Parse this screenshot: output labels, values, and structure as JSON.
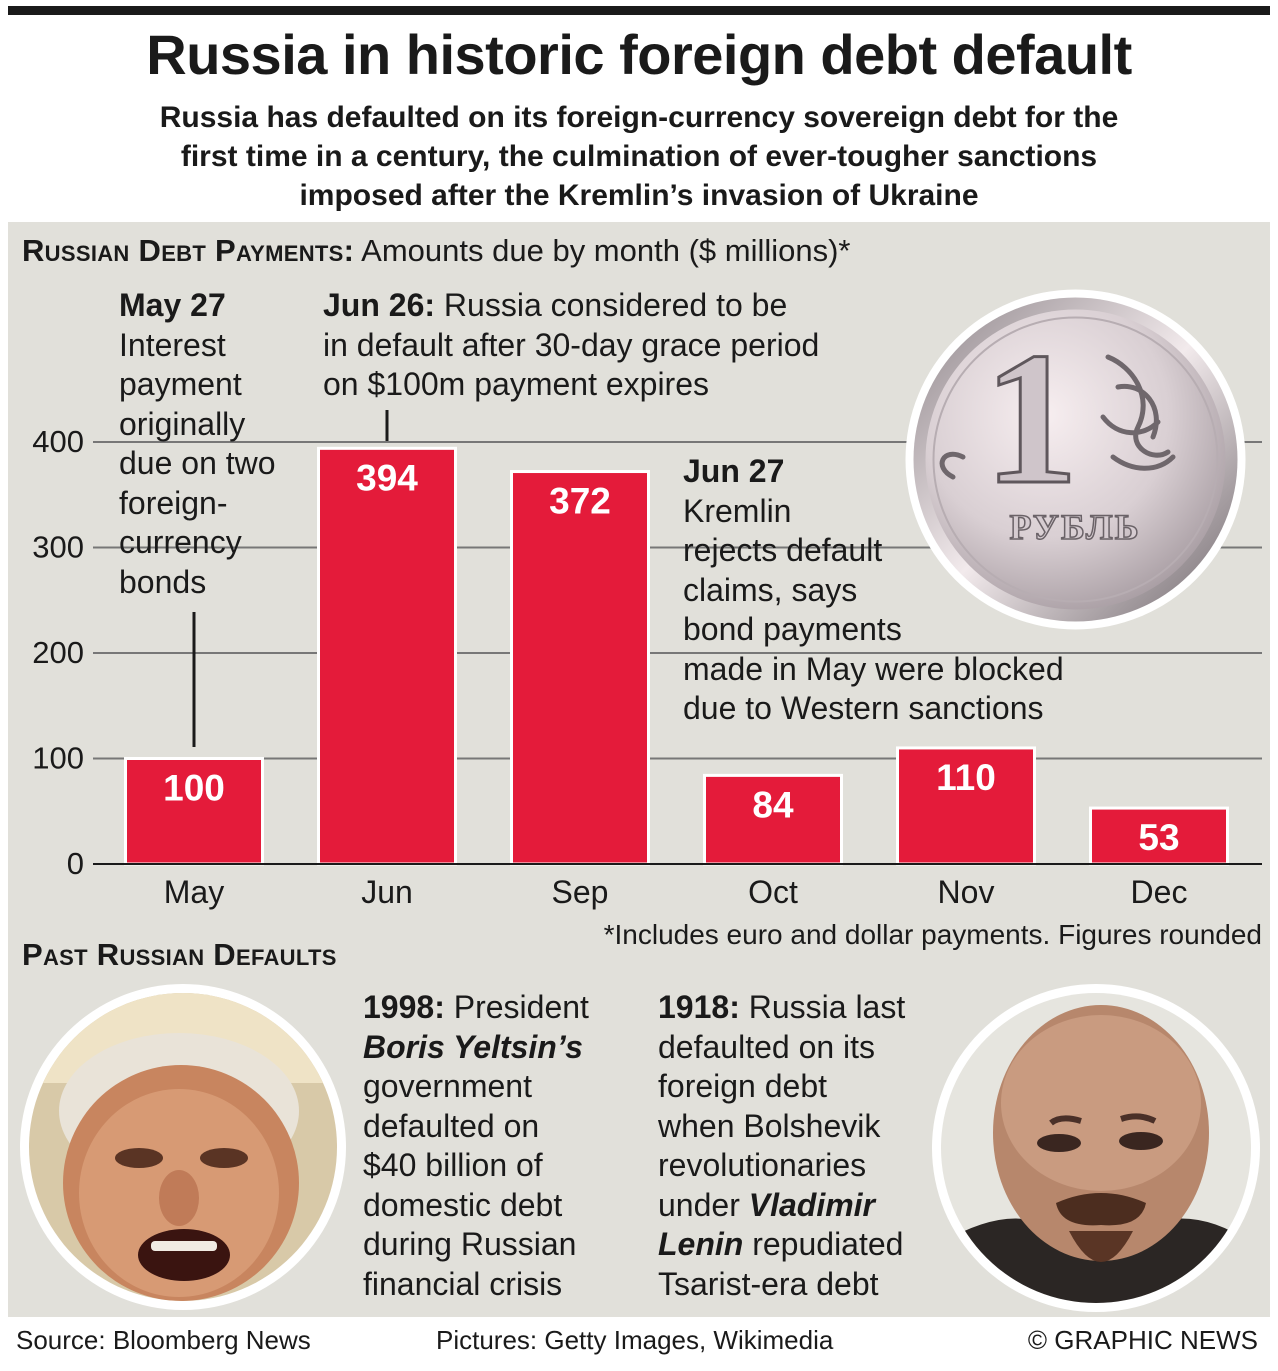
{
  "header": {
    "title": "Russia in historic foreign debt default",
    "subtitle_lines": [
      "Russia has defaulted on its foreign-currency sovereign debt for the",
      "first time in a century, the culmination of ever-tougher sanctions",
      "imposed after the Kremlin’s invasion of Ukraine"
    ]
  },
  "debt_section": {
    "heading": "Russian Debt Payments:",
    "subheading": "Amounts due by month ($ millions)*",
    "footnote": "*Includes euro and dollar payments. Figures rounded"
  },
  "chart_data": {
    "type": "bar",
    "title": "Russian Debt Payments: Amounts due by month ($ millions)*",
    "categories": [
      "May",
      "Jun",
      "Sep",
      "Oct",
      "Nov",
      "Dec"
    ],
    "values": [
      100,
      394,
      372,
      84,
      110,
      53
    ],
    "y_ticks": [
      0,
      100,
      200,
      300,
      400
    ],
    "ylim": [
      0,
      400
    ],
    "grid": true,
    "bar_color": "#e41b3a",
    "value_label_color": "#ffffff"
  },
  "annotations": {
    "may27": {
      "date": "May 27",
      "lines": [
        "Interest",
        "payment",
        "originally",
        "due on two",
        "foreign-",
        "currency",
        "bonds"
      ]
    },
    "jun26": {
      "date": "Jun 26:",
      "lines": [
        "Russia considered to be",
        "in default after 30-day grace period",
        "on $100m payment expires"
      ]
    },
    "jun27": {
      "date": "Jun 27",
      "lines": [
        "Kremlin",
        "rejects default",
        "claims, says",
        "bond payments",
        "made in May were blocked",
        "due to Western sanctions"
      ]
    }
  },
  "coin": {
    "numeral": "1",
    "inscription": "РУБЛЬ",
    "icon": "ruble-coin-icon"
  },
  "past_defaults": {
    "heading": "Past Russian Defaults",
    "yeltsin": {
      "photo_icon": "yeltsin-portrait-icon",
      "year": "1998:",
      "intro": "President",
      "name": "Boris Yeltsin’s",
      "lines": [
        "government",
        "defaulted on",
        "$40 billion of",
        "domestic debt",
        "during Russian",
        "financial crisis"
      ]
    },
    "lenin": {
      "photo_icon": "lenin-portrait-icon",
      "year": "1918:",
      "first_line": "Russia last",
      "lines": [
        "defaulted on its",
        "foreign debt",
        "when Bolshevik",
        "revolutionaries"
      ],
      "under": "under",
      "name_part1": "Vladimir",
      "name_part2": "Lenin",
      "rest": "repudiated",
      "last_line": "Tsarist-era debt"
    }
  },
  "footer": {
    "source": "Source: Bloomberg News",
    "pictures": "Pictures: Getty Images, Wikimedia",
    "credit": "© GRAPHIC NEWS"
  },
  "colors": {
    "bar": "#e41b3a",
    "panel_background": "#e1e0da",
    "gridline": "#777777",
    "text": "#1a1a1a"
  }
}
